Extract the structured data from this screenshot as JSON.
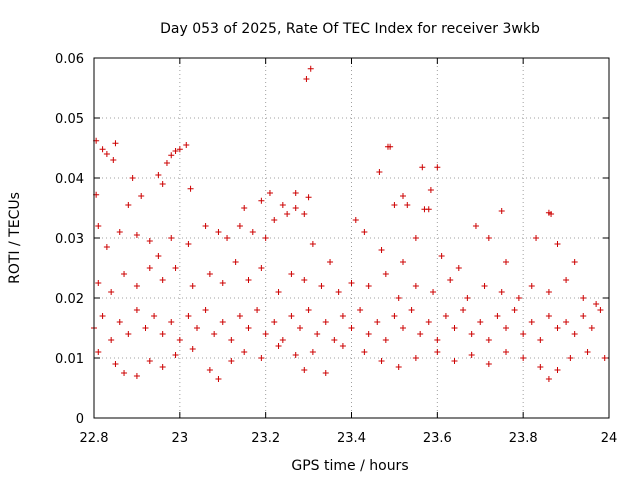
{
  "chart_data": {
    "type": "scatter",
    "title": "Day 053 of 2025, Rate Of TEC Index for receiver 3wkb",
    "xlabel": "GPS time / hours",
    "ylabel": "ROTI / TECUs",
    "xlim": [
      22.8,
      24.0
    ],
    "ylim": [
      0,
      0.06
    ],
    "x_ticks": [
      22.8,
      23.0,
      23.2,
      23.4,
      23.6,
      23.8,
      24.0
    ],
    "x_tick_labels": [
      "22.8",
      "23",
      "23.2",
      "23.4",
      "23.6",
      "23.8",
      "24"
    ],
    "y_ticks": [
      0,
      0.01,
      0.02,
      0.03,
      0.04,
      0.05,
      0.06
    ],
    "y_tick_labels": [
      "0",
      "0.01",
      "0.02",
      "0.03",
      "0.04",
      "0.05",
      "0.06"
    ],
    "grid": true,
    "marker": "+",
    "marker_color": "#cc0000",
    "series": [
      {
        "name": "ROTI",
        "points": [
          [
            22.805,
            0.0462
          ],
          [
            22.805,
            0.0372
          ],
          [
            22.82,
            0.0448
          ],
          [
            22.83,
            0.044
          ],
          [
            22.845,
            0.043
          ],
          [
            22.85,
            0.0458
          ],
          [
            22.88,
            0.0355
          ],
          [
            22.89,
            0.04
          ],
          [
            22.91,
            0.037
          ],
          [
            22.95,
            0.0405
          ],
          [
            22.96,
            0.039
          ],
          [
            22.97,
            0.0425
          ],
          [
            22.98,
            0.0438
          ],
          [
            22.99,
            0.0445
          ],
          [
            23.0,
            0.0448
          ],
          [
            23.015,
            0.0455
          ],
          [
            23.025,
            0.0382
          ],
          [
            23.15,
            0.035
          ],
          [
            23.19,
            0.0362
          ],
          [
            23.21,
            0.0375
          ],
          [
            23.24,
            0.0355
          ],
          [
            23.27,
            0.0375
          ],
          [
            23.3,
            0.0368
          ],
          [
            23.295,
            0.0565
          ],
          [
            23.305,
            0.0582
          ],
          [
            23.465,
            0.041
          ],
          [
            23.485,
            0.0452
          ],
          [
            23.49,
            0.0452
          ],
          [
            23.5,
            0.0355
          ],
          [
            23.52,
            0.037
          ],
          [
            23.53,
            0.0355
          ],
          [
            23.565,
            0.0418
          ],
          [
            23.585,
            0.038
          ],
          [
            23.6,
            0.0418
          ],
          [
            23.57,
            0.0348
          ],
          [
            23.58,
            0.0348
          ],
          [
            23.75,
            0.0345
          ],
          [
            23.86,
            0.0342
          ],
          [
            23.865,
            0.034
          ],
          [
            22.81,
            0.032
          ],
          [
            22.83,
            0.0285
          ],
          [
            22.86,
            0.031
          ],
          [
            22.9,
            0.0305
          ],
          [
            22.93,
            0.0295
          ],
          [
            22.95,
            0.027
          ],
          [
            22.98,
            0.03
          ],
          [
            23.02,
            0.029
          ],
          [
            23.06,
            0.032
          ],
          [
            23.09,
            0.031
          ],
          [
            23.11,
            0.03
          ],
          [
            23.14,
            0.032
          ],
          [
            23.17,
            0.031
          ],
          [
            23.2,
            0.03
          ],
          [
            23.22,
            0.033
          ],
          [
            23.25,
            0.034
          ],
          [
            23.27,
            0.035
          ],
          [
            23.29,
            0.034
          ],
          [
            23.31,
            0.029
          ],
          [
            23.35,
            0.026
          ],
          [
            23.41,
            0.033
          ],
          [
            23.43,
            0.031
          ],
          [
            23.47,
            0.028
          ],
          [
            23.52,
            0.026
          ],
          [
            23.55,
            0.03
          ],
          [
            23.61,
            0.027
          ],
          [
            23.65,
            0.025
          ],
          [
            23.69,
            0.032
          ],
          [
            23.72,
            0.03
          ],
          [
            23.76,
            0.026
          ],
          [
            23.83,
            0.03
          ],
          [
            23.88,
            0.029
          ],
          [
            23.92,
            0.026
          ],
          [
            22.81,
            0.0225
          ],
          [
            22.84,
            0.021
          ],
          [
            22.87,
            0.024
          ],
          [
            22.9,
            0.022
          ],
          [
            22.93,
            0.025
          ],
          [
            22.96,
            0.023
          ],
          [
            22.99,
            0.025
          ],
          [
            23.03,
            0.022
          ],
          [
            23.07,
            0.024
          ],
          [
            23.1,
            0.0225
          ],
          [
            23.13,
            0.026
          ],
          [
            23.16,
            0.023
          ],
          [
            23.19,
            0.025
          ],
          [
            23.23,
            0.021
          ],
          [
            23.26,
            0.024
          ],
          [
            23.29,
            0.023
          ],
          [
            23.33,
            0.022
          ],
          [
            23.37,
            0.021
          ],
          [
            23.4,
            0.0225
          ],
          [
            23.44,
            0.022
          ],
          [
            23.48,
            0.024
          ],
          [
            23.51,
            0.02
          ],
          [
            23.55,
            0.022
          ],
          [
            23.59,
            0.021
          ],
          [
            23.63,
            0.023
          ],
          [
            23.67,
            0.02
          ],
          [
            23.71,
            0.022
          ],
          [
            23.75,
            0.021
          ],
          [
            23.79,
            0.02
          ],
          [
            23.82,
            0.022
          ],
          [
            23.86,
            0.021
          ],
          [
            23.9,
            0.023
          ],
          [
            23.94,
            0.02
          ],
          [
            23.97,
            0.019
          ],
          [
            22.8,
            0.015
          ],
          [
            22.82,
            0.017
          ],
          [
            22.84,
            0.013
          ],
          [
            22.86,
            0.016
          ],
          [
            22.88,
            0.014
          ],
          [
            22.9,
            0.018
          ],
          [
            22.92,
            0.015
          ],
          [
            22.94,
            0.017
          ],
          [
            22.96,
            0.014
          ],
          [
            22.98,
            0.016
          ],
          [
            23.0,
            0.013
          ],
          [
            23.02,
            0.017
          ],
          [
            23.04,
            0.015
          ],
          [
            23.06,
            0.018
          ],
          [
            23.08,
            0.014
          ],
          [
            23.1,
            0.016
          ],
          [
            23.12,
            0.013
          ],
          [
            23.14,
            0.017
          ],
          [
            23.16,
            0.015
          ],
          [
            23.18,
            0.018
          ],
          [
            23.2,
            0.014
          ],
          [
            23.22,
            0.016
          ],
          [
            23.24,
            0.013
          ],
          [
            23.26,
            0.017
          ],
          [
            23.28,
            0.015
          ],
          [
            23.3,
            0.018
          ],
          [
            23.32,
            0.014
          ],
          [
            23.34,
            0.016
          ],
          [
            23.36,
            0.013
          ],
          [
            23.38,
            0.017
          ],
          [
            23.4,
            0.015
          ],
          [
            23.42,
            0.018
          ],
          [
            23.44,
            0.014
          ],
          [
            23.46,
            0.016
          ],
          [
            23.48,
            0.013
          ],
          [
            23.5,
            0.017
          ],
          [
            23.52,
            0.015
          ],
          [
            23.54,
            0.018
          ],
          [
            23.56,
            0.014
          ],
          [
            23.58,
            0.016
          ],
          [
            23.6,
            0.013
          ],
          [
            23.62,
            0.017
          ],
          [
            23.64,
            0.015
          ],
          [
            23.66,
            0.018
          ],
          [
            23.68,
            0.014
          ],
          [
            23.7,
            0.016
          ],
          [
            23.72,
            0.013
          ],
          [
            23.74,
            0.017
          ],
          [
            23.76,
            0.015
          ],
          [
            23.78,
            0.018
          ],
          [
            23.8,
            0.014
          ],
          [
            23.82,
            0.016
          ],
          [
            23.84,
            0.013
          ],
          [
            23.86,
            0.017
          ],
          [
            23.88,
            0.015
          ],
          [
            23.9,
            0.016
          ],
          [
            23.92,
            0.014
          ],
          [
            23.94,
            0.017
          ],
          [
            23.96,
            0.015
          ],
          [
            23.98,
            0.018
          ],
          [
            22.81,
            0.011
          ],
          [
            22.85,
            0.009
          ],
          [
            22.87,
            0.0075
          ],
          [
            22.9,
            0.007
          ],
          [
            22.93,
            0.0095
          ],
          [
            22.96,
            0.0085
          ],
          [
            22.99,
            0.0105
          ],
          [
            23.03,
            0.0115
          ],
          [
            23.07,
            0.008
          ],
          [
            23.09,
            0.0065
          ],
          [
            23.12,
            0.0095
          ],
          [
            23.15,
            0.011
          ],
          [
            23.19,
            0.01
          ],
          [
            23.23,
            0.012
          ],
          [
            23.27,
            0.0105
          ],
          [
            23.29,
            0.008
          ],
          [
            23.31,
            0.011
          ],
          [
            23.34,
            0.0075
          ],
          [
            23.38,
            0.012
          ],
          [
            23.43,
            0.011
          ],
          [
            23.47,
            0.0095
          ],
          [
            23.51,
            0.0085
          ],
          [
            23.55,
            0.01
          ],
          [
            23.6,
            0.011
          ],
          [
            23.64,
            0.0095
          ],
          [
            23.68,
            0.0105
          ],
          [
            23.72,
            0.009
          ],
          [
            23.76,
            0.011
          ],
          [
            23.8,
            0.01
          ],
          [
            23.84,
            0.0085
          ],
          [
            23.86,
            0.0065
          ],
          [
            23.88,
            0.008
          ],
          [
            23.91,
            0.01
          ],
          [
            23.95,
            0.011
          ],
          [
            23.99,
            0.01
          ]
        ]
      }
    ]
  }
}
